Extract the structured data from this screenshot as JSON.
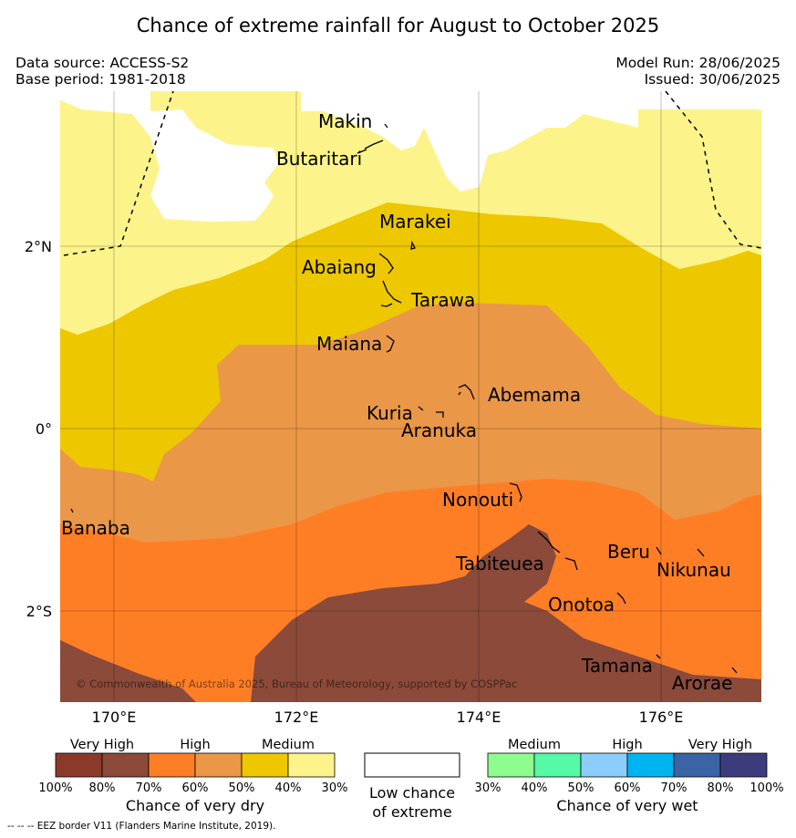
{
  "title": "Chance of extreme rainfall for August to October 2025",
  "meta": {
    "data_source": "Data source: ACCESS-S2",
    "base_period": "Base period: 1981-2018",
    "model_run": "Model Run: 28/06/2025",
    "issued": "Issued: 30/06/2025"
  },
  "axes": {
    "x_ticks": [
      "170°E",
      "172°E",
      "174°E",
      "176°E"
    ],
    "y_ticks": [
      "2°N",
      "0°",
      "2°S"
    ]
  },
  "places": {
    "makin": "Makin",
    "butaritari": "Butaritari",
    "marakei": "Marakei",
    "abaiang": "Abaiang",
    "tarawa": "Tarawa",
    "maiana": "Maiana",
    "abemama": "Abemama",
    "kuria": "Kuria",
    "aranuka": "Aranuka",
    "nonouti": "Nonouti",
    "banaba": "Banaba",
    "tabiteuea": "Tabiteuea",
    "beru": "Beru",
    "nikunau": "Nikunau",
    "onotoa": "Onotoa",
    "tamana": "Tamana",
    "arorae": "Arorae"
  },
  "copyright": "© Commonwealth of Australia 2025, Bureau of Meteorology, supported by COSPPac",
  "legend": {
    "dry": {
      "groups": [
        "Very High",
        "High",
        "Medium"
      ],
      "colors": [
        "#8b3a2a",
        "#8b4a3a",
        "#fe7e26",
        "#ea9748",
        "#edc700",
        "#fcf48a"
      ],
      "ticks": [
        "100%",
        "80%",
        "70%",
        "60%",
        "50%",
        "40%",
        "30%"
      ],
      "label": "Chance of very dry"
    },
    "neutral": {
      "label_line1": "Low chance",
      "label_line2": "of extreme"
    },
    "wet": {
      "groups": [
        "Medium",
        "High",
        "Very High"
      ],
      "colors": [
        "#8efc8e",
        "#55f9a6",
        "#8ccdfc",
        "#00b4f0",
        "#3a64a4",
        "#3c3c7c"
      ],
      "ticks": [
        "30%",
        "40%",
        "50%",
        "60%",
        "70%",
        "80%",
        "100%"
      ],
      "label": "Chance of very wet"
    }
  },
  "footer": "--  --  -- EEZ border V11 (Flanders Marine Institute, 2019)."
}
